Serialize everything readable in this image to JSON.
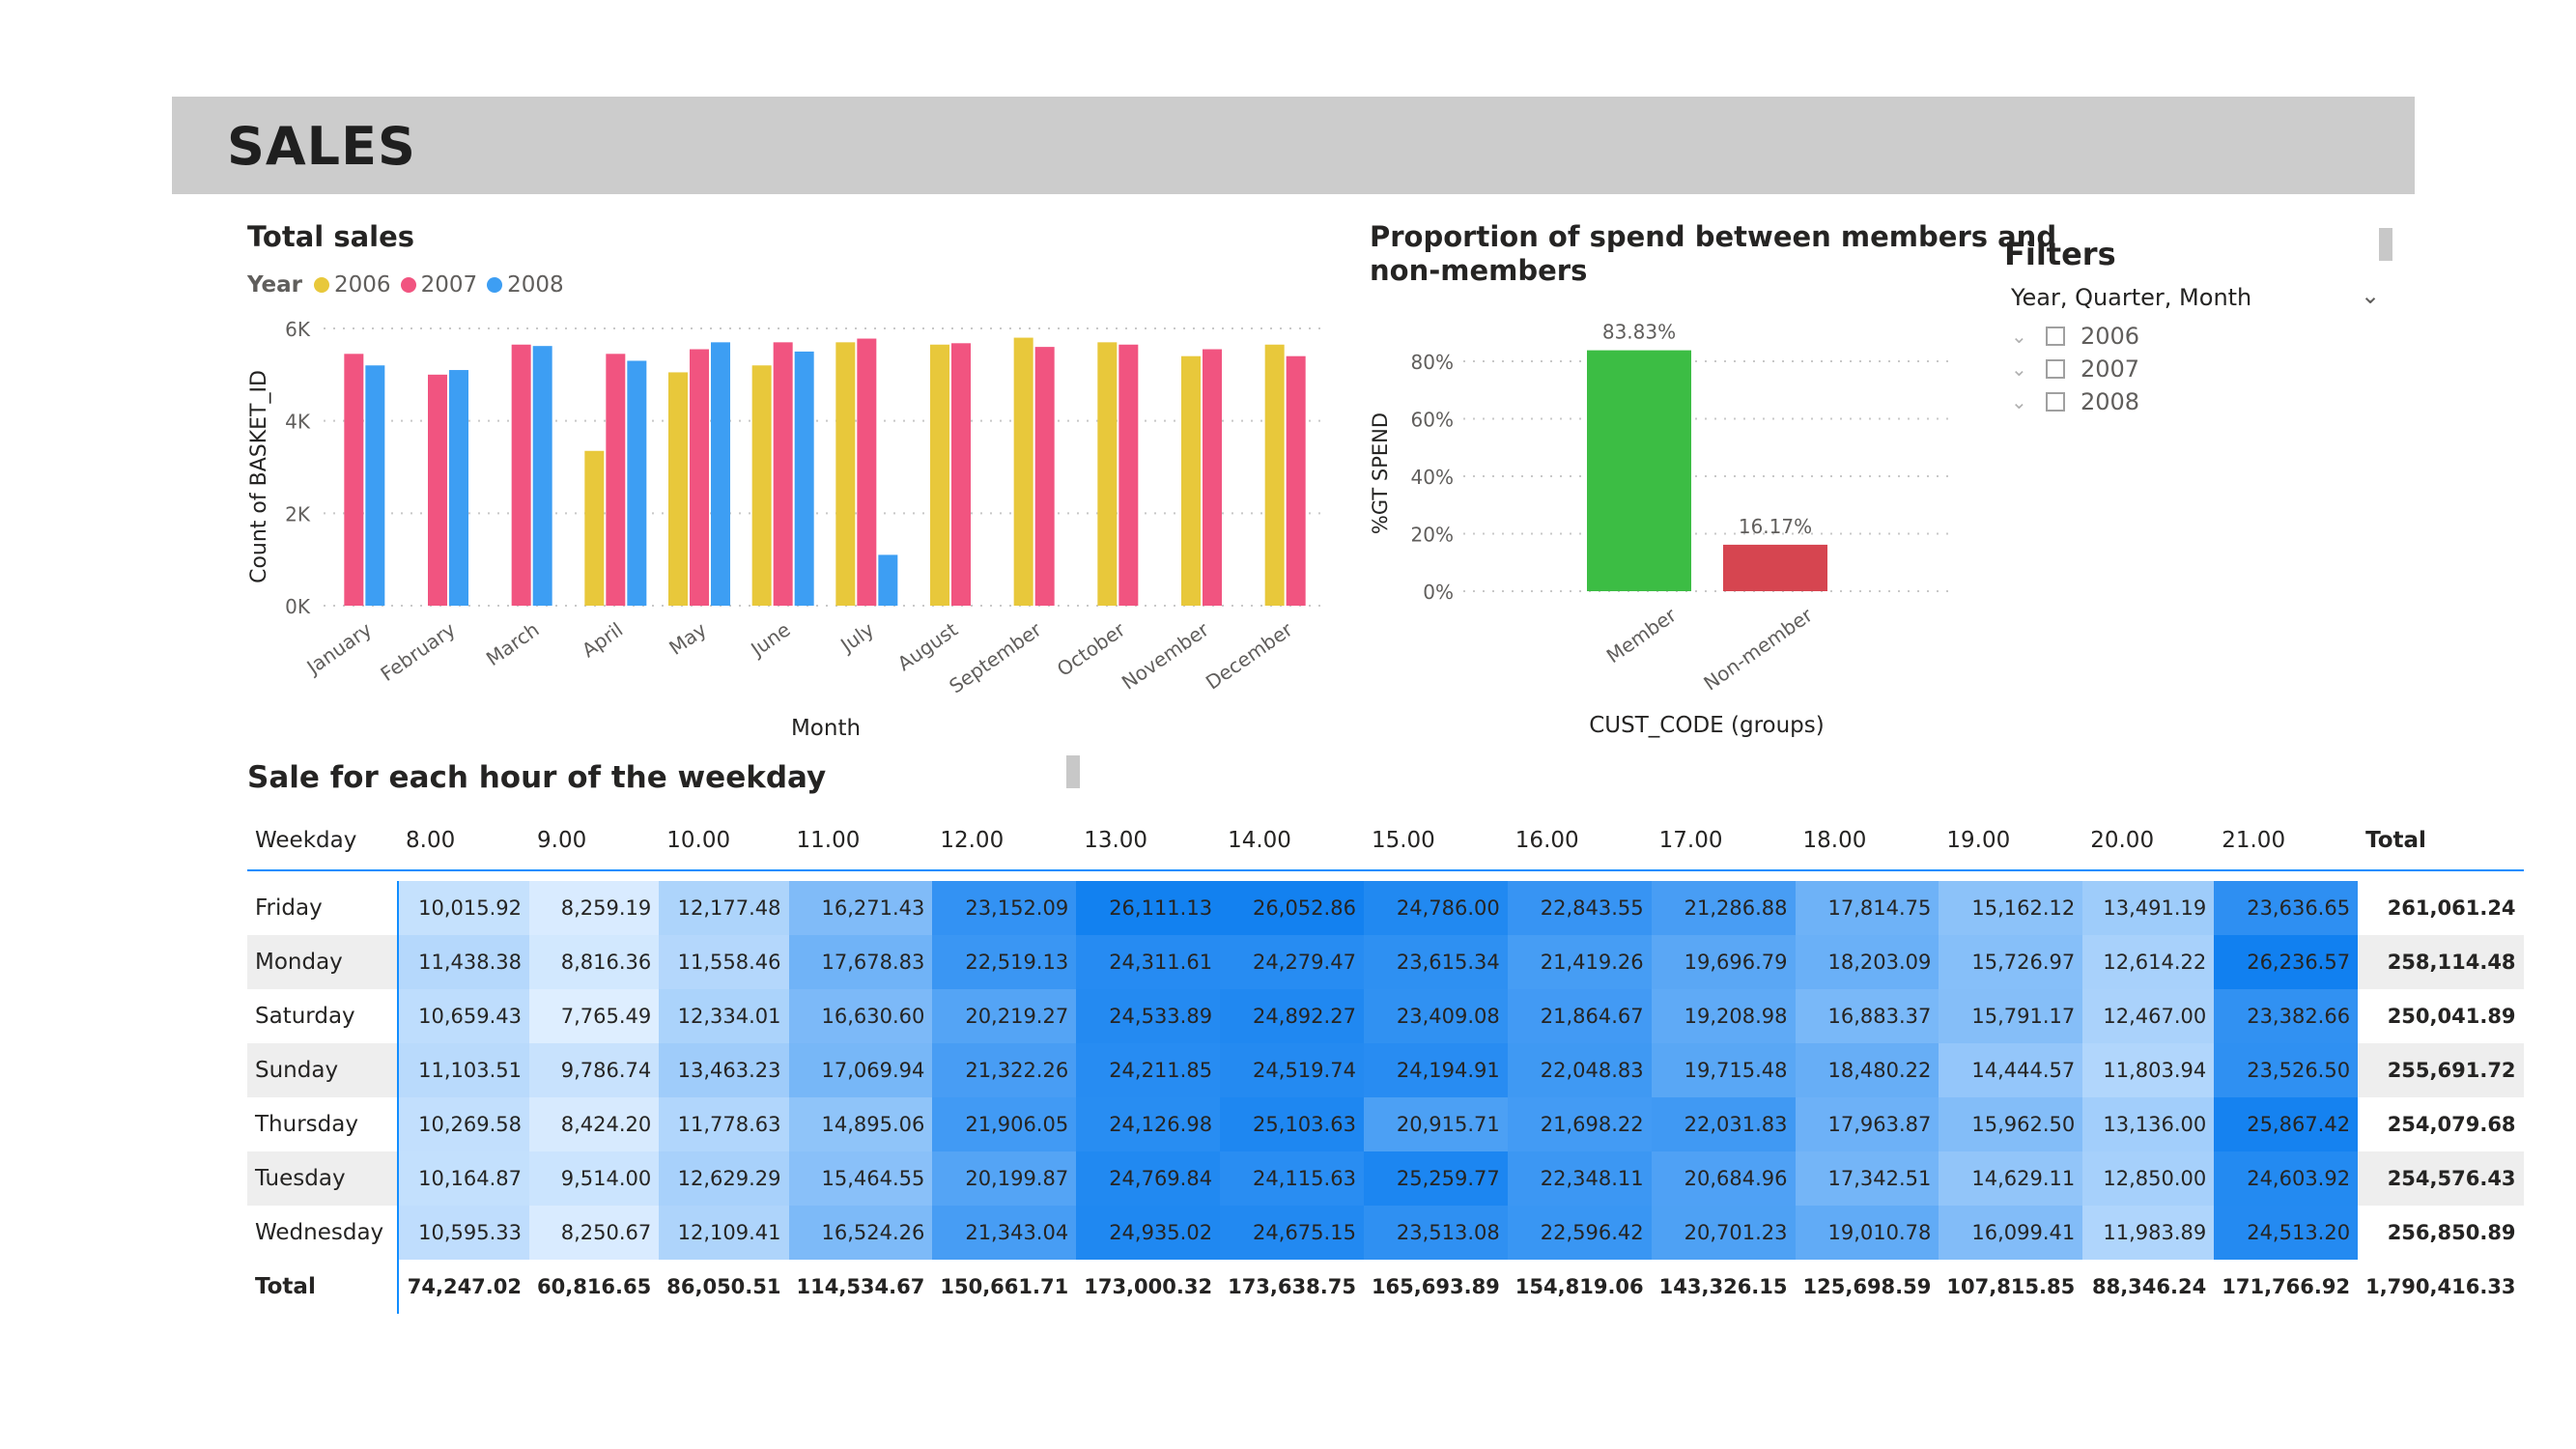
{
  "header": {
    "title": "SALES"
  },
  "total_sales": {
    "title": "Total sales",
    "legend_label": "Year",
    "colors": {
      "2006": "#e8c83b",
      "2007": "#f15480",
      "2008": "#3d9ef3"
    }
  },
  "proportion": {
    "title_line1": "Proportion of spend between members and",
    "title_line2": "non-members",
    "colors": {
      "Member": "#3cbd44",
      "Non-member": "#d64550"
    }
  },
  "filters": {
    "title": "Filters",
    "field": "Year, Quarter, Month",
    "items": [
      "2006",
      "2007",
      "2008"
    ]
  },
  "weekday_sales": {
    "title": "Sale for each hour of the weekday",
    "columns": [
      "Weekday",
      "8.00",
      "9.00",
      "10.00",
      "11.00",
      "12.00",
      "13.00",
      "14.00",
      "15.00",
      "16.00",
      "17.00",
      "18.00",
      "19.00",
      "20.00",
      "21.00",
      "Total"
    ],
    "rows": [
      {
        "label": "Friday",
        "values": [
          "10,015.92",
          "8,259.19",
          "12,177.48",
          "16,271.43",
          "23,152.09",
          "26,111.13",
          "26,052.86",
          "24,786.00",
          "22,843.55",
          "21,286.88",
          "17,814.75",
          "15,162.12",
          "13,491.19",
          "23,636.65"
        ],
        "total": "261,061.24"
      },
      {
        "label": "Monday",
        "values": [
          "11,438.38",
          "8,816.36",
          "11,558.46",
          "17,678.83",
          "22,519.13",
          "24,311.61",
          "24,279.47",
          "23,615.34",
          "21,419.26",
          "19,696.79",
          "18,203.09",
          "15,726.97",
          "12,614.22",
          "26,236.57"
        ],
        "total": "258,114.48"
      },
      {
        "label": "Saturday",
        "values": [
          "10,659.43",
          "7,765.49",
          "12,334.01",
          "16,630.60",
          "20,219.27",
          "24,533.89",
          "24,892.27",
          "23,409.08",
          "21,864.67",
          "19,208.98",
          "16,883.37",
          "15,791.17",
          "12,467.00",
          "23,382.66"
        ],
        "total": "250,041.89"
      },
      {
        "label": "Sunday",
        "values": [
          "11,103.51",
          "9,786.74",
          "13,463.23",
          "17,069.94",
          "21,322.26",
          "24,211.85",
          "24,519.74",
          "24,194.91",
          "22,048.83",
          "19,715.48",
          "18,480.22",
          "14,444.57",
          "11,803.94",
          "23,526.50"
        ],
        "total": "255,691.72"
      },
      {
        "label": "Thursday",
        "values": [
          "10,269.58",
          "8,424.20",
          "11,778.63",
          "14,895.06",
          "21,906.05",
          "24,126.98",
          "25,103.63",
          "20,915.71",
          "21,698.22",
          "22,031.83",
          "17,963.87",
          "15,962.50",
          "13,136.00",
          "25,867.42"
        ],
        "total": "254,079.68"
      },
      {
        "label": "Tuesday",
        "values": [
          "10,164.87",
          "9,514.00",
          "12,629.29",
          "15,464.55",
          "20,199.87",
          "24,769.84",
          "24,115.63",
          "25,259.77",
          "22,348.11",
          "20,684.96",
          "17,342.51",
          "14,629.11",
          "12,850.00",
          "24,603.92"
        ],
        "total": "254,576.43"
      },
      {
        "label": "Wednesday",
        "values": [
          "10,595.33",
          "8,250.67",
          "12,109.41",
          "16,524.26",
          "21,343.04",
          "24,935.02",
          "24,675.15",
          "23,513.08",
          "22,596.42",
          "20,701.23",
          "19,010.78",
          "16,099.41",
          "11,983.89",
          "24,513.20"
        ],
        "total": "256,850.89"
      }
    ],
    "totals_label": "Total",
    "totals": [
      "74,247.02",
      "60,816.65",
      "86,050.51",
      "114,534.67",
      "150,661.71",
      "173,000.32",
      "173,638.75",
      "165,693.89",
      "154,819.06",
      "143,326.15",
      "125,698.59",
      "107,815.85",
      "88,346.24",
      "171,766.92"
    ],
    "grand_total": "1,790,416.33"
  },
  "chart_data": [
    {
      "type": "bar",
      "title": "Total sales",
      "xlabel": "Month",
      "ylabel": "Count of BASKET_ID",
      "ylim": [
        0,
        6000
      ],
      "yticks": [
        "0K",
        "2K",
        "4K",
        "6K"
      ],
      "legend": "top-left",
      "grid": true,
      "categories": [
        "January",
        "February",
        "March",
        "April",
        "May",
        "June",
        "July",
        "August",
        "September",
        "October",
        "November",
        "December"
      ],
      "series": [
        {
          "name": "2006",
          "values": [
            null,
            null,
            null,
            3350,
            5050,
            5200,
            5700,
            5650,
            5800,
            5700,
            5400,
            5650
          ]
        },
        {
          "name": "2007",
          "values": [
            5450,
            5000,
            5650,
            5450,
            5550,
            5700,
            5780,
            5680,
            5600,
            5650,
            5550,
            5400
          ]
        },
        {
          "name": "2008",
          "values": [
            5200,
            5100,
            5620,
            5300,
            5700,
            5500,
            1100,
            null,
            null,
            null,
            null,
            null
          ]
        }
      ]
    },
    {
      "type": "bar",
      "title": "Proportion of spend between members and non-members",
      "xlabel": "CUST_CODE (groups)",
      "ylabel": "%GT SPEND",
      "ylim": [
        0,
        90
      ],
      "yticks": [
        "0%",
        "20%",
        "40%",
        "60%",
        "80%"
      ],
      "grid": true,
      "categories": [
        "Member",
        "Non-member"
      ],
      "values": [
        83.83,
        16.17
      ],
      "data_labels": [
        "83.83%",
        "16.17%"
      ]
    }
  ]
}
